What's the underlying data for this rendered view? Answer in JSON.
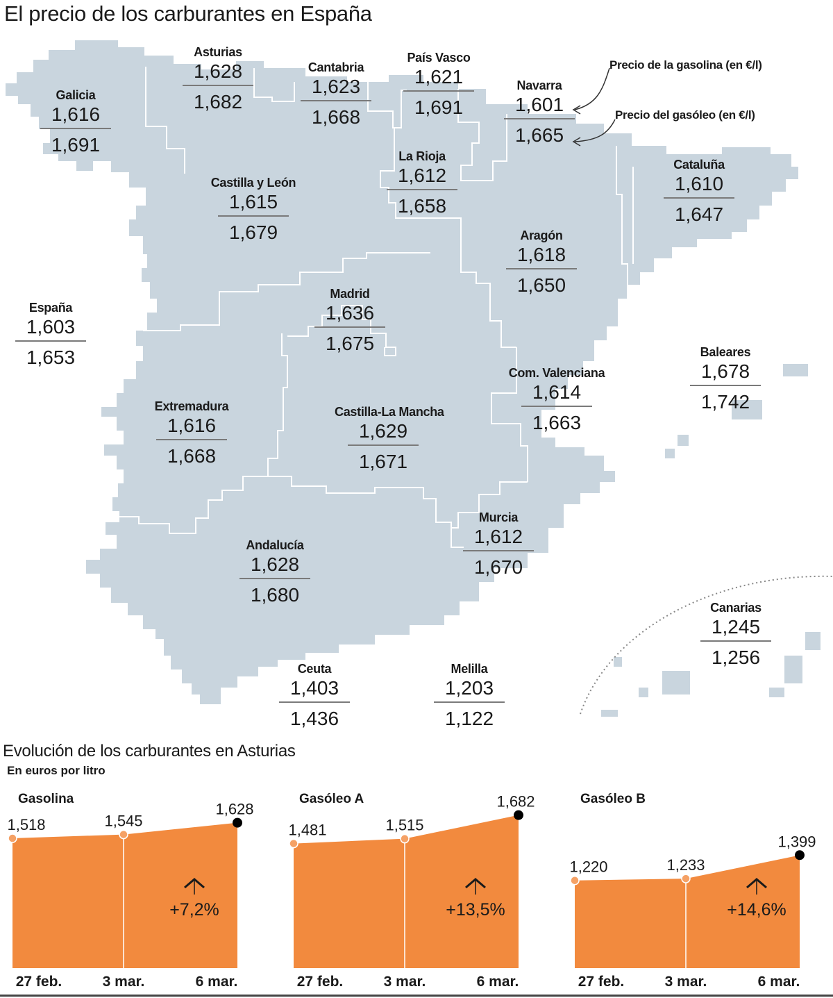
{
  "title": "El precio de los carburantes en España",
  "notes": {
    "gasoline": "Precio de la gasolina (en €/l)",
    "diesel": "Precio del gasóleo (en €/l)"
  },
  "colors": {
    "map": "#c9d5de",
    "border": "#ffffff",
    "area": "#f28a3e",
    "marker_light": "#f5a165",
    "marker_dark": "#000000"
  },
  "regions": [
    {
      "name": "Galicia",
      "gasoline": "1,616",
      "diesel": "1,691"
    },
    {
      "name": "Asturias",
      "gasoline": "1,628",
      "diesel": "1,682"
    },
    {
      "name": "Cantabria",
      "gasoline": "1,623",
      "diesel": "1,668"
    },
    {
      "name": "País Vasco",
      "gasoline": "1,621",
      "diesel": "1,691"
    },
    {
      "name": "Navarra",
      "gasoline": "1,601",
      "diesel": "1,665"
    },
    {
      "name": "La Rioja",
      "gasoline": "1,612",
      "diesel": "1,658"
    },
    {
      "name": "Castilla y León",
      "gasoline": "1,615",
      "diesel": "1,679"
    },
    {
      "name": "Cataluña",
      "gasoline": "1,610",
      "diesel": "1,647"
    },
    {
      "name": "Aragón",
      "gasoline": "1,618",
      "diesel": "1,650"
    },
    {
      "name": "Madrid",
      "gasoline": "1,636",
      "diesel": "1,675"
    },
    {
      "name": "España",
      "gasoline": "1,603",
      "diesel": "1,653"
    },
    {
      "name": "Baleares",
      "gasoline": "1,678",
      "diesel": "1,742"
    },
    {
      "name": "Com. Valenciana",
      "gasoline": "1,614",
      "diesel": "1,663"
    },
    {
      "name": "Extremadura",
      "gasoline": "1,616",
      "diesel": "1,668"
    },
    {
      "name": "Castilla-La Mancha",
      "gasoline": "1,629",
      "diesel": "1,671"
    },
    {
      "name": "Murcia",
      "gasoline": "1,612",
      "diesel": "1,670"
    },
    {
      "name": "Andalucía",
      "gasoline": "1,628",
      "diesel": "1,680"
    },
    {
      "name": "Canarias",
      "gasoline": "1,245",
      "diesel": "1,256"
    },
    {
      "name": "Ceuta",
      "gasoline": "1,403",
      "diesel": "1,436"
    },
    {
      "name": "Melilla",
      "gasoline": "1,203",
      "diesel": "1,122"
    }
  ],
  "chart_data": [
    {
      "type": "area",
      "title": "Gasolina",
      "categories": [
        "27 feb.",
        "3 mar.",
        "6 mar."
      ],
      "values": [
        1.518,
        1.545,
        1.628
      ],
      "labels": [
        "1,518",
        "1,545",
        "1,628"
      ],
      "change": "+7,2%",
      "ylabel": "En euros por litro"
    },
    {
      "type": "area",
      "title": "Gasóleo A",
      "categories": [
        "27 feb.",
        "3 mar.",
        "6 mar."
      ],
      "values": [
        1.481,
        1.515,
        1.682
      ],
      "labels": [
        "1,481",
        "1,515",
        "1,682"
      ],
      "change": "+13,5%",
      "ylabel": "En euros por litro"
    },
    {
      "type": "area",
      "title": "Gasóleo B",
      "categories": [
        "27 feb.",
        "3 mar.",
        "6 mar."
      ],
      "values": [
        1.22,
        1.233,
        1.399
      ],
      "labels": [
        "1,220",
        "1,233",
        "1,399"
      ],
      "change": "+14,6%",
      "ylabel": "En euros por litro"
    }
  ],
  "section": {
    "title": "Evolución de los carburantes en Asturias",
    "unit": "En euros por litro"
  }
}
